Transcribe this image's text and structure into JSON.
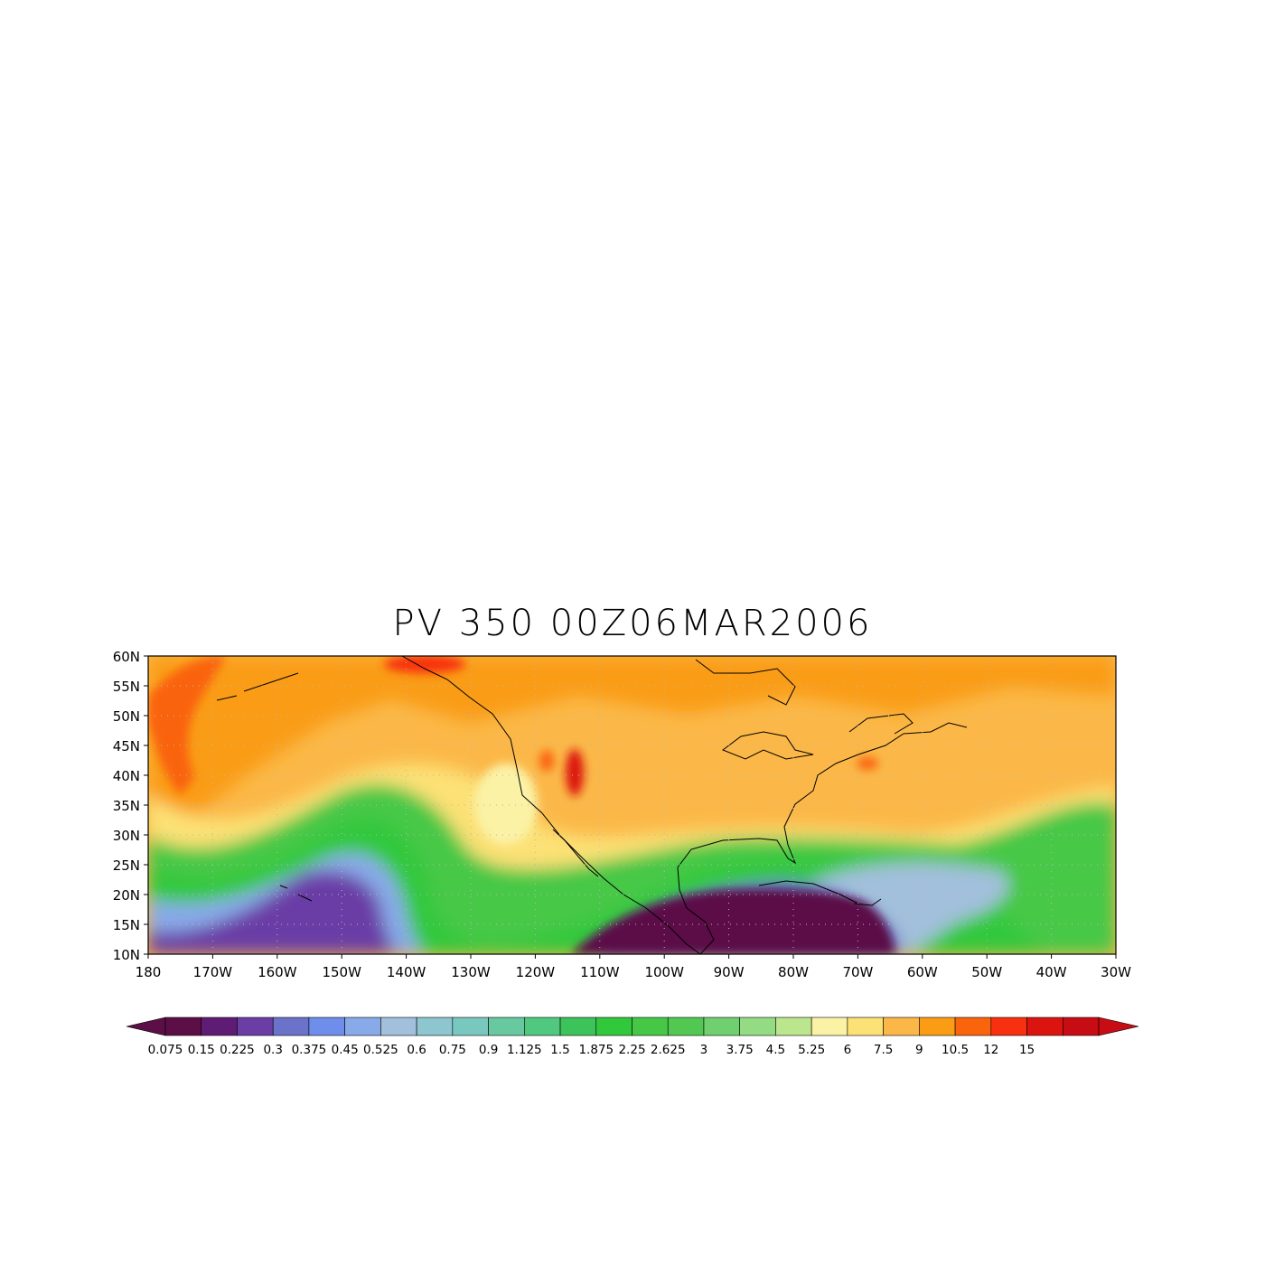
{
  "title": "PV 350 00Z06MAR2006",
  "map": {
    "lon_range": [
      -180,
      -30
    ],
    "lat_range": [
      10,
      60
    ],
    "lat_ticks": [
      {
        "value": 60,
        "label": "60N"
      },
      {
        "value": 55,
        "label": "55N"
      },
      {
        "value": 50,
        "label": "50N"
      },
      {
        "value": 45,
        "label": "45N"
      },
      {
        "value": 40,
        "label": "40N"
      },
      {
        "value": 35,
        "label": "35N"
      },
      {
        "value": 30,
        "label": "30N"
      },
      {
        "value": 25,
        "label": "25N"
      },
      {
        "value": 20,
        "label": "20N"
      },
      {
        "value": 15,
        "label": "15N"
      },
      {
        "value": 10,
        "label": "10N"
      }
    ],
    "lon_ticks": [
      {
        "value": -180,
        "label": "180"
      },
      {
        "value": -170,
        "label": "170W"
      },
      {
        "value": -160,
        "label": "160W"
      },
      {
        "value": -150,
        "label": "150W"
      },
      {
        "value": -140,
        "label": "140W"
      },
      {
        "value": -130,
        "label": "130W"
      },
      {
        "value": -120,
        "label": "120W"
      },
      {
        "value": -110,
        "label": "110W"
      },
      {
        "value": -100,
        "label": "100W"
      },
      {
        "value": -90,
        "label": "90W"
      },
      {
        "value": -80,
        "label": "80W"
      },
      {
        "value": -70,
        "label": "70W"
      },
      {
        "value": -60,
        "label": "60W"
      },
      {
        "value": -50,
        "label": "50W"
      },
      {
        "value": -40,
        "label": "40W"
      },
      {
        "value": -30,
        "label": "30W"
      }
    ],
    "grid": "dotted"
  },
  "colorbar": {
    "labels": [
      "0.075",
      "0.15",
      "0.225",
      "0.3",
      "0.375",
      "0.45",
      "0.525",
      "0.6",
      "0.75",
      "0.9",
      "1.125",
      "1.5",
      "1.875",
      "2.25",
      "2.625",
      "3",
      "3.75",
      "4.5",
      "5.25",
      "6",
      "7.5",
      "9",
      "10.5",
      "12",
      "15"
    ],
    "colors": [
      "#5c0f46",
      "#5e1c74",
      "#6b3ea6",
      "#6a72c9",
      "#6f8eeb",
      "#88aae8",
      "#a2c0dc",
      "#8ec6d0",
      "#79c8c0",
      "#68c8a0",
      "#50c880",
      "#3cc45a",
      "#32c83c",
      "#46c846",
      "#52c852",
      "#70d070",
      "#94dc84",
      "#bce68e",
      "#fbf2a6",
      "#fce176",
      "#fbb848",
      "#fa9c14",
      "#fa640c",
      "#f83010",
      "#dc1410",
      "#c80c14"
    ],
    "extend": "both"
  }
}
